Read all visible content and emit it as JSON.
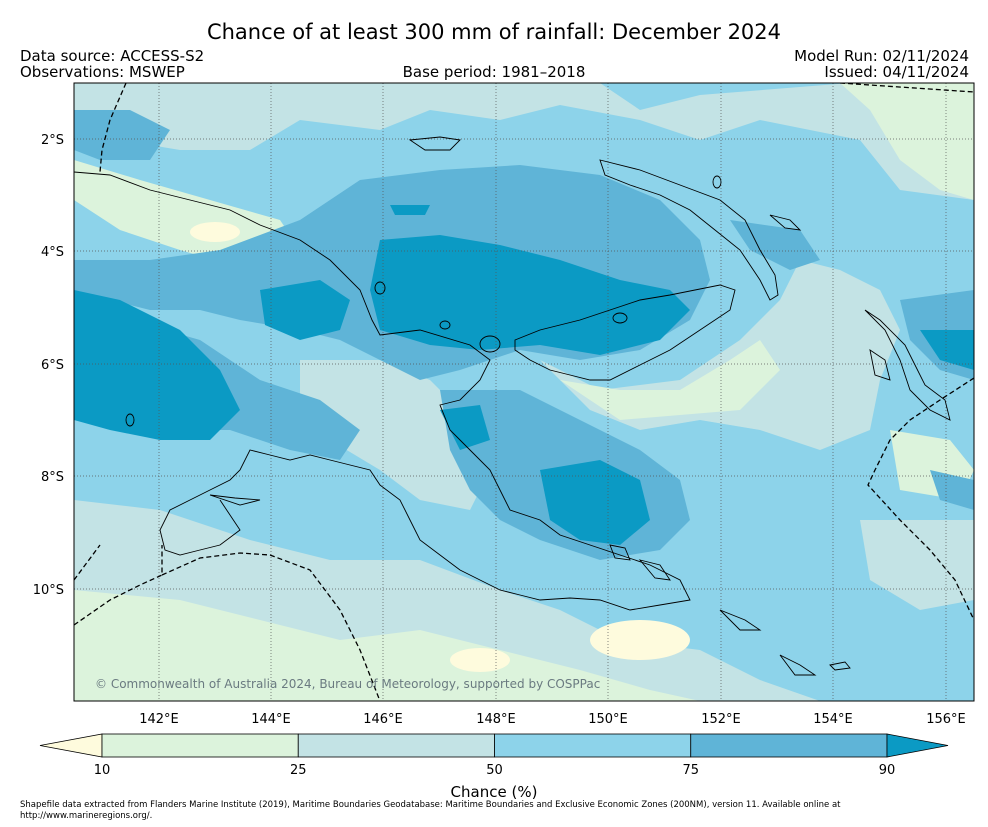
{
  "header": {
    "title": "Chance of at least 300 mm of rainfall: December 2024",
    "data_source": "Data source: ACCESS-S2",
    "observations": "Observations: MSWEP",
    "base_period": "Base period: 1981–2018",
    "model_run": "Model Run: 02/11/2024",
    "issued": "Issued: 04/11/2024"
  },
  "map": {
    "lon_ticks": [
      "142°E",
      "144°E",
      "146°E",
      "148°E",
      "150°E",
      "152°E",
      "154°E",
      "156°E"
    ],
    "lat_ticks": [
      "2°S",
      "4°S",
      "6°S",
      "8°S",
      "10°S"
    ],
    "copyright": "© Commonwealth of Australia 2024, Bureau of Meteorology, supported by COSPPac",
    "region": "Papua New Guinea"
  },
  "colorbar": {
    "label": "Chance (%)",
    "ticks": [
      "10",
      "25",
      "50",
      "75",
      "90"
    ],
    "colors": [
      "#fefbdd",
      "#dcf3dc",
      "#c3e3e5",
      "#8dd3ea",
      "#5fb4d7",
      "#0b9ac4"
    ]
  },
  "footer": {
    "text": "Shapefile data extracted from Flanders Marine Institute (2019), Maritime Boundaries Geodatabase: Maritime Boundaries and Exclusive Economic Zones (200NM), version 11. Available online at http://www.marineregions.org/."
  }
}
